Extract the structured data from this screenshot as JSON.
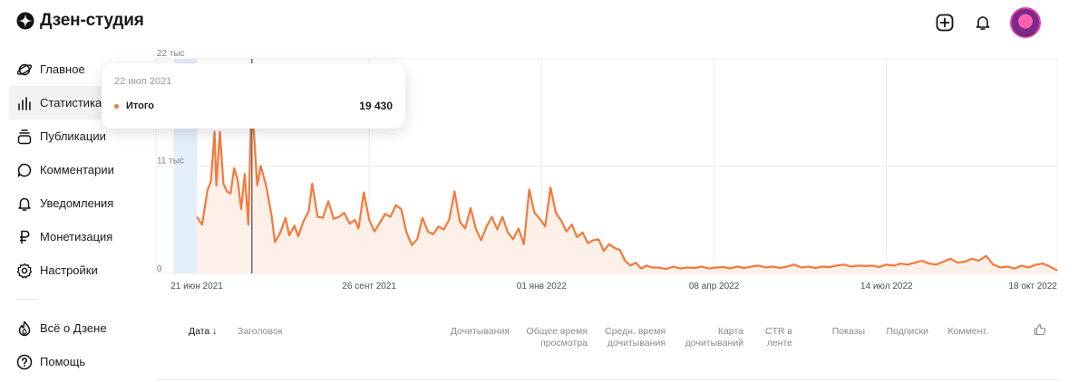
{
  "app": {
    "title": "Дзен-студия"
  },
  "sidebar": {
    "items": [
      {
        "label": "Главное",
        "icon": "planet-icon"
      },
      {
        "label": "Статистика",
        "icon": "bar-chart-icon",
        "active": true
      },
      {
        "label": "Публикации",
        "icon": "stack-icon"
      },
      {
        "label": "Комментарии",
        "icon": "comment-icon"
      },
      {
        "label": "Уведомления",
        "icon": "bell-icon"
      },
      {
        "label": "Монетизация",
        "icon": "ruble-icon"
      },
      {
        "label": "Настройки",
        "icon": "gear-icon"
      }
    ],
    "secondary": [
      {
        "label": "Всё о Дзене",
        "icon": "flame-icon"
      },
      {
        "label": "Помощь",
        "icon": "help-icon"
      }
    ]
  },
  "header": {
    "add_icon": "plus-square-icon",
    "bell_icon": "bell-icon"
  },
  "colors": {
    "accent": "#f5793a",
    "area_fill": "#fdf0e9",
    "selection": "#e3eefb",
    "grid": "#ececec"
  },
  "tooltip": {
    "date": "22 июл 2021",
    "series_label": "Итого",
    "value": "19 430"
  },
  "chart_data": {
    "type": "area",
    "title": "",
    "xlabel": "",
    "ylabel": "",
    "ylim": [
      0,
      22000
    ],
    "yticks": [
      {
        "value": 22000,
        "label": "22 тыс"
      },
      {
        "value": 11000,
        "label": "11 тыс"
      },
      {
        "value": 0,
        "label": "0"
      }
    ],
    "x_start": "2021-06-21",
    "x_end": "2022-10-18",
    "xticks": [
      {
        "date": "2021-06-21",
        "label": "21 июн 2021"
      },
      {
        "date": "2021-09-26",
        "label": "26 сент 2021"
      },
      {
        "date": "2022-01-01",
        "label": "01 янв 2022"
      },
      {
        "date": "2022-04-08",
        "label": "08 апр 2022"
      },
      {
        "date": "2022-07-14",
        "label": "14 июл 2022"
      },
      {
        "date": "2022-10-18",
        "label": "18 окт 2022"
      }
    ],
    "hover_date": "2021-07-22",
    "selection_range": [
      "2021-06-08",
      "2021-06-21"
    ],
    "grid": true,
    "series": [
      {
        "points": [
          [
            "2021-06-21",
            5800
          ],
          [
            "2021-06-24",
            5000
          ],
          [
            "2021-06-27",
            8500
          ],
          [
            "2021-06-29",
            9500
          ],
          [
            "2021-07-01",
            14500
          ],
          [
            "2021-07-02",
            9000
          ],
          [
            "2021-07-04",
            14500
          ],
          [
            "2021-07-06",
            9200
          ],
          [
            "2021-07-08",
            8400
          ],
          [
            "2021-07-10",
            8200
          ],
          [
            "2021-07-12",
            10800
          ],
          [
            "2021-07-14",
            9600
          ],
          [
            "2021-07-16",
            6600
          ],
          [
            "2021-07-18",
            10200
          ],
          [
            "2021-07-20",
            5000
          ],
          [
            "2021-07-22",
            19430
          ],
          [
            "2021-07-23",
            15000
          ],
          [
            "2021-07-25",
            9000
          ],
          [
            "2021-07-27",
            11000
          ],
          [
            "2021-07-30",
            9000
          ],
          [
            "2021-08-02",
            6000
          ],
          [
            "2021-08-04",
            3200
          ],
          [
            "2021-08-07",
            4200
          ],
          [
            "2021-08-10",
            5700
          ],
          [
            "2021-08-12",
            3900
          ],
          [
            "2021-08-15",
            4900
          ],
          [
            "2021-08-17",
            3800
          ],
          [
            "2021-08-20",
            5300
          ],
          [
            "2021-08-23",
            6400
          ],
          [
            "2021-08-25",
            9200
          ],
          [
            "2021-08-28",
            5800
          ],
          [
            "2021-08-31",
            5700
          ],
          [
            "2021-09-03",
            7400
          ],
          [
            "2021-09-06",
            5600
          ],
          [
            "2021-09-09",
            5800
          ],
          [
            "2021-09-12",
            6200
          ],
          [
            "2021-09-15",
            5100
          ],
          [
            "2021-09-18",
            5500
          ],
          [
            "2021-09-20",
            4600
          ],
          [
            "2021-09-23",
            8300
          ],
          [
            "2021-09-26",
            5500
          ],
          [
            "2021-09-29",
            4300
          ],
          [
            "2021-10-02",
            5200
          ],
          [
            "2021-10-05",
            6100
          ],
          [
            "2021-10-08",
            5800
          ],
          [
            "2021-10-11",
            7000
          ],
          [
            "2021-10-14",
            6600
          ],
          [
            "2021-10-17",
            4200
          ],
          [
            "2021-10-20",
            2900
          ],
          [
            "2021-10-23",
            3500
          ],
          [
            "2021-10-26",
            5700
          ],
          [
            "2021-10-29",
            4300
          ],
          [
            "2021-11-01",
            4000
          ],
          [
            "2021-11-04",
            4800
          ],
          [
            "2021-11-07",
            4500
          ],
          [
            "2021-11-10",
            5500
          ],
          [
            "2021-11-13",
            8400
          ],
          [
            "2021-11-16",
            5300
          ],
          [
            "2021-11-19",
            4600
          ],
          [
            "2021-11-22",
            6700
          ],
          [
            "2021-11-25",
            4600
          ],
          [
            "2021-11-28",
            3400
          ],
          [
            "2021-12-01",
            4800
          ],
          [
            "2021-12-04",
            5800
          ],
          [
            "2021-12-07",
            4500
          ],
          [
            "2021-12-10",
            5800
          ],
          [
            "2021-12-13",
            4200
          ],
          [
            "2021-12-16",
            3500
          ],
          [
            "2021-12-19",
            4600
          ],
          [
            "2021-12-22",
            3000
          ],
          [
            "2021-12-25",
            8600
          ],
          [
            "2021-12-28",
            6200
          ],
          [
            "2021-12-31",
            5600
          ],
          [
            "2022-01-03",
            4800
          ],
          [
            "2022-01-06",
            8800
          ],
          [
            "2022-01-09",
            6200
          ],
          [
            "2022-01-12",
            5400
          ],
          [
            "2022-01-15",
            4300
          ],
          [
            "2022-01-18",
            5000
          ],
          [
            "2022-01-21",
            3700
          ],
          [
            "2022-01-24",
            4200
          ],
          [
            "2022-01-27",
            3100
          ],
          [
            "2022-01-30",
            3400
          ],
          [
            "2022-02-02",
            3500
          ],
          [
            "2022-02-05",
            2300
          ],
          [
            "2022-02-08",
            3000
          ],
          [
            "2022-02-11",
            2600
          ],
          [
            "2022-02-14",
            2400
          ],
          [
            "2022-02-17",
            1300
          ],
          [
            "2022-02-20",
            800
          ],
          [
            "2022-02-23",
            1100
          ],
          [
            "2022-02-26",
            500
          ],
          [
            "2022-03-01",
            800
          ],
          [
            "2022-03-04",
            600
          ],
          [
            "2022-03-08",
            600
          ],
          [
            "2022-03-12",
            450
          ],
          [
            "2022-03-16",
            700
          ],
          [
            "2022-03-20",
            500
          ],
          [
            "2022-03-24",
            600
          ],
          [
            "2022-03-28",
            550
          ],
          [
            "2022-04-01",
            700
          ],
          [
            "2022-04-05",
            500
          ],
          [
            "2022-04-09",
            600
          ],
          [
            "2022-04-13",
            650
          ],
          [
            "2022-04-17",
            500
          ],
          [
            "2022-04-21",
            700
          ],
          [
            "2022-04-25",
            550
          ],
          [
            "2022-04-29",
            700
          ],
          [
            "2022-05-03",
            800
          ],
          [
            "2022-05-07",
            600
          ],
          [
            "2022-05-11",
            700
          ],
          [
            "2022-05-15",
            550
          ],
          [
            "2022-05-19",
            700
          ],
          [
            "2022-05-23",
            900
          ],
          [
            "2022-05-27",
            600
          ],
          [
            "2022-05-31",
            700
          ],
          [
            "2022-06-04",
            550
          ],
          [
            "2022-06-08",
            700
          ],
          [
            "2022-06-12",
            650
          ],
          [
            "2022-06-16",
            800
          ],
          [
            "2022-06-20",
            900
          ],
          [
            "2022-06-24",
            700
          ],
          [
            "2022-06-28",
            800
          ],
          [
            "2022-07-02",
            750
          ],
          [
            "2022-07-06",
            800
          ],
          [
            "2022-07-10",
            650
          ],
          [
            "2022-07-14",
            900
          ],
          [
            "2022-07-18",
            800
          ],
          [
            "2022-07-22",
            1000
          ],
          [
            "2022-07-26",
            900
          ],
          [
            "2022-07-30",
            1100
          ],
          [
            "2022-08-03",
            1300
          ],
          [
            "2022-08-07",
            1000
          ],
          [
            "2022-08-11",
            900
          ],
          [
            "2022-08-15",
            1200
          ],
          [
            "2022-08-19",
            1500
          ],
          [
            "2022-08-23",
            1100
          ],
          [
            "2022-08-27",
            1200
          ],
          [
            "2022-08-31",
            1500
          ],
          [
            "2022-09-04",
            1300
          ],
          [
            "2022-09-08",
            1800
          ],
          [
            "2022-09-12",
            900
          ],
          [
            "2022-09-16",
            600
          ],
          [
            "2022-09-20",
            700
          ],
          [
            "2022-09-24",
            500
          ],
          [
            "2022-09-28",
            800
          ],
          [
            "2022-10-02",
            600
          ],
          [
            "2022-10-06",
            900
          ],
          [
            "2022-10-10",
            1000
          ],
          [
            "2022-10-14",
            700
          ],
          [
            "2022-10-18",
            300
          ]
        ]
      }
    ]
  },
  "table": {
    "columns": [
      {
        "label": "Дата ↓",
        "sorted": true
      },
      {
        "label": "Заголовок"
      },
      {
        "label": "Дочитывания"
      },
      {
        "label": "Общее время просмотра"
      },
      {
        "label": "Средн. время дочитывания"
      },
      {
        "label": "Карта дочитываний"
      },
      {
        "label": "CTR в ленте"
      },
      {
        "label": "Показы"
      },
      {
        "label": "Подписки"
      },
      {
        "label": "Коммент."
      }
    ],
    "like_icon": "thumbs-up-icon"
  }
}
